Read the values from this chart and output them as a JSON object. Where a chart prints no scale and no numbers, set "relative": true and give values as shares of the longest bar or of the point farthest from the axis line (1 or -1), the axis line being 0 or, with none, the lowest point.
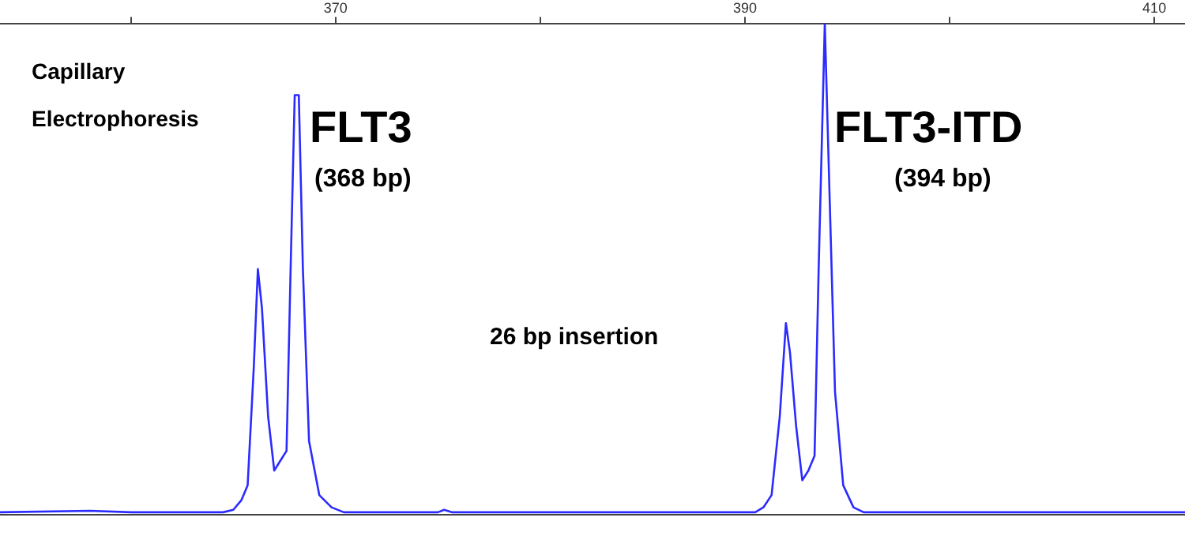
{
  "chart_data": {
    "type": "line",
    "relative": true,
    "color": "#2b2bff",
    "x": [
      353.6,
      358,
      360,
      364.5,
      365.0,
      365.4,
      365.7,
      366.0,
      366.2,
      366.4,
      366.7,
      367.0,
      367.3,
      367.6,
      367.8,
      368.0,
      368.2,
      368.4,
      368.7,
      369.2,
      369.8,
      370.4,
      375,
      375.3,
      375.7,
      390.5,
      390.9,
      391.3,
      391.7,
      392.0,
      392.2,
      392.5,
      392.8,
      393.1,
      393.4,
      393.6,
      393.9,
      394.1,
      394.4,
      394.8,
      395.3,
      395.8,
      411.5
    ],
    "values": [
      0.005,
      0.008,
      0.005,
      0.005,
      0.01,
      0.03,
      0.06,
      0.3,
      0.5,
      0.42,
      0.2,
      0.09,
      0.11,
      0.13,
      0.5,
      0.854,
      0.854,
      0.5,
      0.15,
      0.04,
      0.015,
      0.005,
      0.005,
      0.01,
      0.005,
      0.005,
      0.015,
      0.04,
      0.2,
      0.39,
      0.33,
      0.18,
      0.07,
      0.09,
      0.12,
      0.5,
      1,
      0.7,
      0.25,
      0.06,
      0.015,
      0.005,
      0.005
    ],
    "xlim": [
      353.6,
      411.5
    ],
    "xticks": [
      {
        "value": 360,
        "label": null
      },
      370,
      {
        "value": 380,
        "label": null
      },
      390,
      {
        "value": 400,
        "label": null
      },
      410
    ],
    "grid": false,
    "legend": false,
    "annotations": [
      "Capillary Electrophoresis",
      "FLT3",
      "(368 bp)",
      "FLT3-ITD",
      "(394 bp)",
      "26 bp insertion"
    ]
  }
}
